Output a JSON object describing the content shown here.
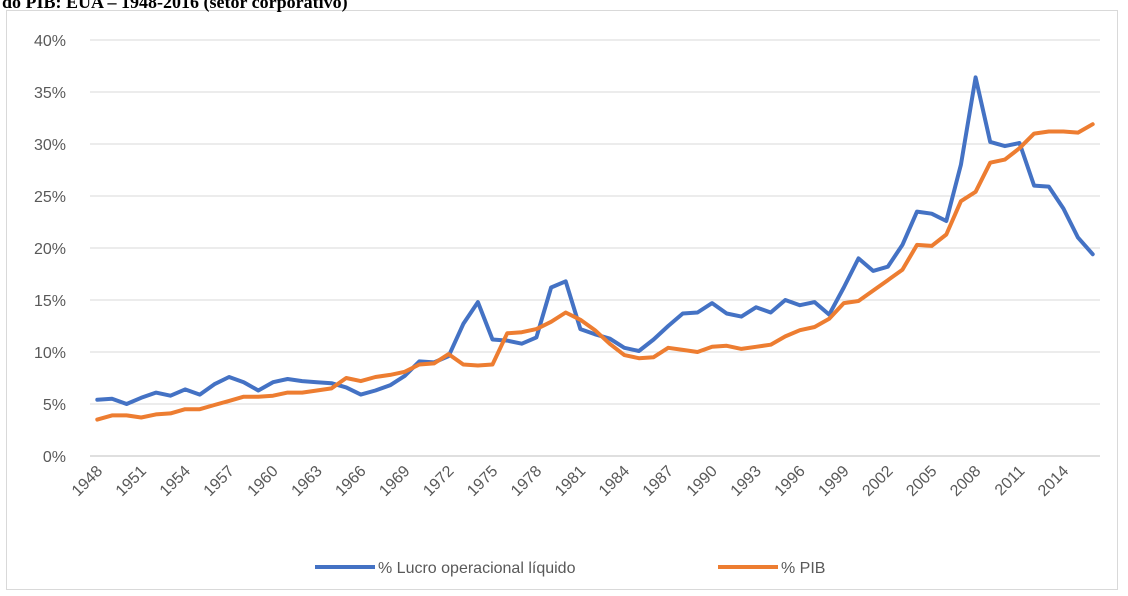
{
  "chart_data": {
    "type": "line",
    "title": "do PIB: EUA – 1948-2016 (setor corporativo)",
    "categories": [
      "1948",
      null,
      null,
      "1951",
      null,
      null,
      "1954",
      null,
      null,
      "1957",
      null,
      null,
      "1960",
      null,
      null,
      "1963",
      null,
      null,
      "1966",
      null,
      null,
      "1969",
      null,
      null,
      "1972",
      null,
      null,
      "1975",
      null,
      null,
      "1978",
      null,
      null,
      "1981",
      null,
      null,
      "1984",
      null,
      null,
      "1987",
      null,
      null,
      "1990",
      null,
      null,
      "1993",
      null,
      null,
      "1996",
      null,
      null,
      "1999",
      null,
      null,
      "2002",
      null,
      null,
      "2005",
      null,
      null,
      "2008",
      null,
      null,
      "2011",
      null,
      null,
      "2014",
      null,
      null
    ],
    "series": [
      {
        "name": "% Lucro operacional líquido",
        "color": "#4472c4",
        "values": [
          5.4,
          5.5,
          5.0,
          5.6,
          6.1,
          5.8,
          6.4,
          5.9,
          6.9,
          7.6,
          7.1,
          6.3,
          7.1,
          7.4,
          7.2,
          7.1,
          7.0,
          6.6,
          5.9,
          6.3,
          6.8,
          7.7,
          9.1,
          9.0,
          9.6,
          12.7,
          14.8,
          11.2,
          11.1,
          10.8,
          11.4,
          16.2,
          16.8,
          12.2,
          11.7,
          11.3,
          10.4,
          10.1,
          11.2,
          12.5,
          13.7,
          13.8,
          14.7,
          13.7,
          13.4,
          14.3,
          13.8,
          15.0,
          14.5,
          14.8,
          13.6,
          16.2,
          19.0,
          17.8,
          18.2,
          20.3,
          23.5,
          23.3,
          22.6,
          28.0,
          36.4,
          30.2,
          29.8,
          30.1,
          26.0,
          25.9,
          23.8,
          21.0,
          19.4
        ]
      },
      {
        "name": "% PIB",
        "color": "#ed7d31",
        "values": [
          3.5,
          3.9,
          3.9,
          3.7,
          4.0,
          4.1,
          4.5,
          4.5,
          4.9,
          5.3,
          5.7,
          5.7,
          5.8,
          6.1,
          6.1,
          6.3,
          6.5,
          7.5,
          7.2,
          7.6,
          7.8,
          8.1,
          8.8,
          8.9,
          9.8,
          8.8,
          8.7,
          8.8,
          11.8,
          11.9,
          12.2,
          12.9,
          13.8,
          13.1,
          12.1,
          10.8,
          9.7,
          9.4,
          9.5,
          10.4,
          10.2,
          10.0,
          10.5,
          10.6,
          10.3,
          10.5,
          10.7,
          11.5,
          12.1,
          12.4,
          13.2,
          14.7,
          14.9,
          15.9,
          16.9,
          17.9,
          20.3,
          20.2,
          21.3,
          24.5,
          25.4,
          28.2,
          28.5,
          29.6,
          31.0,
          31.2,
          31.2,
          31.1,
          31.9
        ]
      }
    ],
    "ylim": [
      0,
      40
    ],
    "yticks": [
      {
        "value": 0,
        "label": "0%"
      },
      {
        "value": 5,
        "label": "5%"
      },
      {
        "value": 10,
        "label": "10%"
      },
      {
        "value": 15,
        "label": "15%"
      },
      {
        "value": 20,
        "label": "20%"
      },
      {
        "value": 25,
        "label": "25%"
      },
      {
        "value": 30,
        "label": "30%"
      },
      {
        "value": 35,
        "label": "35%"
      },
      {
        "value": 40,
        "label": "40%"
      }
    ],
    "grid": true,
    "legend": "bottom"
  }
}
